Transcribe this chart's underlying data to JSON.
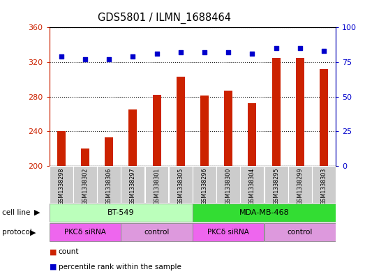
{
  "title": "GDS5801 / ILMN_1688464",
  "samples": [
    "GSM1338298",
    "GSM1338302",
    "GSM1338306",
    "GSM1338297",
    "GSM1338301",
    "GSM1338305",
    "GSM1338296",
    "GSM1338300",
    "GSM1338304",
    "GSM1338295",
    "GSM1338299",
    "GSM1338303"
  ],
  "counts": [
    240,
    220,
    233,
    265,
    282,
    303,
    281,
    287,
    272,
    325,
    325,
    312
  ],
  "percentiles": [
    79,
    77,
    77,
    79,
    81,
    82,
    82,
    82,
    81,
    85,
    85,
    83
  ],
  "ylim_left": [
    200,
    360
  ],
  "ylim_right": [
    0,
    100
  ],
  "yticks_left": [
    200,
    240,
    280,
    320,
    360
  ],
  "yticks_right": [
    0,
    25,
    50,
    75,
    100
  ],
  "cell_line_groups": [
    {
      "label": "BT-549",
      "start": 0,
      "end": 5,
      "color": "#bbffbb"
    },
    {
      "label": "MDA-MB-468",
      "start": 6,
      "end": 11,
      "color": "#33dd33"
    }
  ],
  "protocol_groups": [
    {
      "label": "PKCδ siRNA",
      "start": 0,
      "end": 2,
      "color": "#ee66ee"
    },
    {
      "label": "control",
      "start": 3,
      "end": 5,
      "color": "#dd99dd"
    },
    {
      "label": "PKCδ siRNA",
      "start": 6,
      "end": 8,
      "color": "#ee66ee"
    },
    {
      "label": "control",
      "start": 9,
      "end": 11,
      "color": "#dd99dd"
    }
  ],
  "bar_color": "#cc2200",
  "dot_color": "#0000cc",
  "label_color_left": "#cc2200",
  "label_color_right": "#0000cc",
  "sample_bg_color": "#cccccc",
  "cell_line_label": "cell line",
  "protocol_label": "protocol",
  "legend_count": "count",
  "legend_pct": "percentile rank within the sample"
}
